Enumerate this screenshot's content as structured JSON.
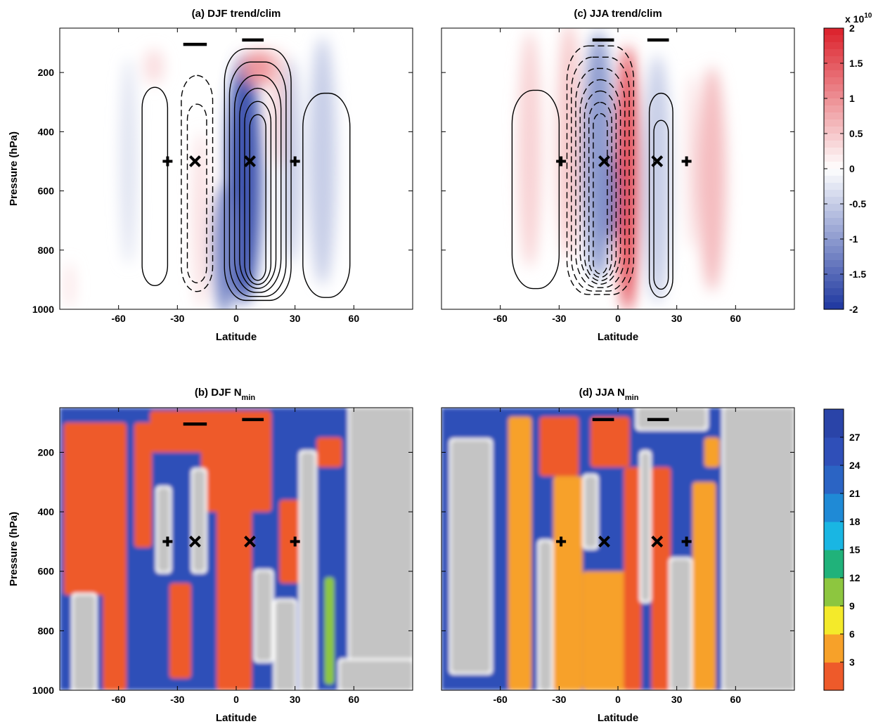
{
  "chart_data": [
    {
      "type": "heatmap",
      "panel": "a",
      "title": "(a) DJF trend/clim",
      "xlabel": "Latitude",
      "ylabel": "Pressure (hPa)",
      "xlim": [
        -90,
        90
      ],
      "ylim": [
        1000,
        50
      ],
      "xticks": [
        -60,
        -30,
        0,
        30,
        60
      ],
      "yticks": [
        200,
        400,
        600,
        800,
        1000
      ],
      "fill_blobs": [
        {
          "lat": 4,
          "p": 560,
          "wlat": 9,
          "wp": 420,
          "v": -1.7
        },
        {
          "lat": -6,
          "p": 800,
          "wlat": 6,
          "wp": 220,
          "v": -1.2
        },
        {
          "lat": 12,
          "p": 185,
          "wlat": 9,
          "wp": 60,
          "v": 0.9
        },
        {
          "lat": 22,
          "p": 320,
          "wlat": 4,
          "wp": 200,
          "v": 0.4
        },
        {
          "lat": 28,
          "p": 500,
          "wlat": 4,
          "wp": 350,
          "v": -0.6
        },
        {
          "lat": 44,
          "p": 500,
          "wlat": 7,
          "wp": 420,
          "v": -0.5
        },
        {
          "lat": -18,
          "p": 700,
          "wlat": 4,
          "wp": 300,
          "v": 0.3
        },
        {
          "lat": -42,
          "p": 180,
          "wlat": 5,
          "wp": 60,
          "v": 0.3
        },
        {
          "lat": -55,
          "p": 500,
          "wlat": 4,
          "wp": 350,
          "v": -0.3
        },
        {
          "lat": -85,
          "p": 920,
          "wlat": 2,
          "wp": 80,
          "v": 0.3
        }
      ],
      "contour_cells": [
        {
          "lat_min": -48,
          "lat_max": -35,
          "p_top": 250,
          "p_bot": 920,
          "style": "solid",
          "n": 1
        },
        {
          "lat_min": -28,
          "lat_max": -12,
          "p_top": 210,
          "p_bot": 940,
          "style": "dashed",
          "n": 2
        },
        {
          "lat_min": -6,
          "lat_max": 28,
          "p_top": 120,
          "p_bot": 970,
          "style": "solid",
          "n": 6
        },
        {
          "lat_min": 34,
          "lat_max": 58,
          "p_top": 270,
          "p_bot": 960,
          "style": "solid",
          "n": 1
        }
      ],
      "markers": [
        {
          "symbol": "+",
          "lat": -35,
          "p": 500
        },
        {
          "symbol": "x",
          "lat": -21,
          "p": 500
        },
        {
          "symbol": "x",
          "lat": 7,
          "p": 500
        },
        {
          "symbol": "+",
          "lat": 30,
          "p": 500
        }
      ],
      "bars": [
        {
          "lat_min": -27,
          "lat_max": -15,
          "p": 105
        },
        {
          "lat_min": 3,
          "lat_max": 14,
          "p": 90
        }
      ]
    },
    {
      "type": "heatmap",
      "panel": "c",
      "title": "(c) JJA trend/clim",
      "xlabel": "Latitude",
      "xlim": [
        -90,
        90
      ],
      "ylim": [
        1000,
        50
      ],
      "xticks": [
        -60,
        -30,
        0,
        30,
        60
      ],
      "fill_blobs": [
        {
          "lat": 5,
          "p": 560,
          "wlat": 6,
          "wp": 450,
          "v": 1.6
        },
        {
          "lat": -10,
          "p": 480,
          "wlat": 8,
          "wp": 420,
          "v": -1.0
        },
        {
          "lat": -4,
          "p": 620,
          "wlat": 4,
          "wp": 150,
          "v": -1.2
        },
        {
          "lat": -45,
          "p": 460,
          "wlat": 6,
          "wp": 400,
          "v": 0.4
        },
        {
          "lat": -25,
          "p": 430,
          "wlat": 6,
          "wp": 400,
          "v": 0.5
        },
        {
          "lat": 20,
          "p": 560,
          "wlat": 7,
          "wp": 420,
          "v": -0.5
        },
        {
          "lat": 48,
          "p": 560,
          "wlat": 7,
          "wp": 380,
          "v": 0.6
        },
        {
          "lat": 38,
          "p": 500,
          "wlat": 3,
          "wp": 300,
          "v": 0.3
        }
      ],
      "contour_cells": [
        {
          "lat_min": -54,
          "lat_max": -30,
          "p_top": 260,
          "p_bot": 930,
          "style": "solid",
          "n": 1
        },
        {
          "lat_min": -26,
          "lat_max": 8,
          "p_top": 110,
          "p_bot": 950,
          "style": "dashed",
          "n": 7
        },
        {
          "lat_min": 16,
          "lat_max": 28,
          "p_top": 270,
          "p_bot": 960,
          "style": "solid",
          "n": 2
        }
      ],
      "markers": [
        {
          "symbol": "+",
          "lat": -29,
          "p": 500
        },
        {
          "symbol": "x",
          "lat": -7,
          "p": 500
        },
        {
          "symbol": "x",
          "lat": 20,
          "p": 500
        },
        {
          "symbol": "+",
          "lat": 35,
          "p": 500
        }
      ],
      "bars": [
        {
          "lat_min": -13,
          "lat_max": -2,
          "p": 90
        },
        {
          "lat_min": 15,
          "lat_max": 26,
          "p": 90
        }
      ],
      "colorbar": {
        "range": [
          -2,
          2
        ],
        "multiplier": "x 10",
        "exponent": "10",
        "ticks": [
          "2",
          "1.5",
          "1",
          "0.5",
          "0",
          "-0.5",
          "-1",
          "-1.5",
          "-2"
        ],
        "tick_values": [
          2,
          1.5,
          1,
          0.5,
          0,
          -0.5,
          -1,
          -1.5,
          -2
        ]
      }
    },
    {
      "type": "heatmap",
      "panel": "b",
      "title": "(b) DJF N",
      "title_subscript": "min",
      "xlabel": "Latitude",
      "ylabel": "Pressure (hPa)",
      "xlim": [
        -90,
        90
      ],
      "ylim": [
        1000,
        50
      ],
      "xticks": [
        -60,
        -30,
        0,
        30,
        60
      ],
      "yticks": [
        200,
        400,
        600,
        800,
        1000
      ],
      "background": 26,
      "regions": [
        {
          "lat_min": -88,
          "lat_max": -64,
          "p_top": 100,
          "p_bot": 680,
          "v": 2
        },
        {
          "lat_min": -68,
          "lat_max": -56,
          "p_top": 100,
          "p_bot": 1000,
          "v": 2
        },
        {
          "lat_min": -52,
          "lat_max": -43,
          "p_top": 100,
          "p_bot": 520,
          "v": 2
        },
        {
          "lat_min": -44,
          "lat_max": -8,
          "p_top": 60,
          "p_bot": 200,
          "v": 2
        },
        {
          "lat_min": -18,
          "lat_max": 18,
          "p_top": 60,
          "p_bot": 400,
          "v": 2
        },
        {
          "lat_min": -10,
          "lat_max": 8,
          "p_top": 380,
          "p_bot": 1000,
          "v": 2
        },
        {
          "lat_min": -34,
          "lat_max": -23,
          "p_top": 640,
          "p_bot": 960,
          "v": 2
        },
        {
          "lat_min": 22,
          "lat_max": 34,
          "p_top": 360,
          "p_bot": 640,
          "v": 2
        },
        {
          "lat_min": 41,
          "lat_max": 54,
          "p_top": 150,
          "p_bot": 250,
          "v": 2
        },
        {
          "lat_min": 45,
          "lat_max": 50,
          "p_top": 620,
          "p_bot": 980,
          "v": 10
        },
        {
          "lat_min": 58,
          "lat_max": 90,
          "p_top": 50,
          "p_bot": 900,
          "v": "gray"
        },
        {
          "lat_min": 53,
          "lat_max": 90,
          "p_top": 900,
          "p_bot": 1000,
          "v": "gray"
        },
        {
          "lat_min": -83,
          "lat_max": -72,
          "p_top": 680,
          "p_bot": 1000,
          "v": "gray"
        },
        {
          "lat_min": -40,
          "lat_max": -34,
          "p_top": 320,
          "p_bot": 600,
          "v": "gray"
        },
        {
          "lat_min": -22,
          "lat_max": -16,
          "p_top": 260,
          "p_bot": 600,
          "v": "gray"
        },
        {
          "lat_min": 10,
          "lat_max": 18,
          "p_top": 600,
          "p_bot": 900,
          "v": "gray"
        },
        {
          "lat_min": 20,
          "lat_max": 30,
          "p_top": 700,
          "p_bot": 1000,
          "v": "gray"
        },
        {
          "lat_min": 33,
          "lat_max": 40,
          "p_top": 200,
          "p_bot": 1000,
          "v": "gray"
        }
      ],
      "markers": [
        {
          "symbol": "+",
          "lat": -35,
          "p": 500
        },
        {
          "symbol": "x",
          "lat": -21,
          "p": 500
        },
        {
          "symbol": "x",
          "lat": 7,
          "p": 500
        },
        {
          "symbol": "+",
          "lat": 30,
          "p": 500
        }
      ],
      "bars": [
        {
          "lat_min": -27,
          "lat_max": -15,
          "p": 105
        },
        {
          "lat_min": 3,
          "lat_max": 14,
          "p": 90
        }
      ]
    },
    {
      "type": "heatmap",
      "panel": "d",
      "title": "(d) JJA N",
      "title_subscript": "min",
      "xlabel": "Latitude",
      "xlim": [
        -90,
        90
      ],
      "ylim": [
        1000,
        50
      ],
      "xticks": [
        -60,
        -30,
        0,
        30,
        60
      ],
      "background": 26,
      "regions": [
        {
          "lat_min": -56,
          "lat_max": -44,
          "p_top": 80,
          "p_bot": 1000,
          "v": 5
        },
        {
          "lat_min": -40,
          "lat_max": -20,
          "p_top": 80,
          "p_bot": 280,
          "v": 2
        },
        {
          "lat_min": -33,
          "lat_max": -18,
          "p_top": 280,
          "p_bot": 1000,
          "v": 4
        },
        {
          "lat_min": -14,
          "lat_max": 6,
          "p_top": 80,
          "p_bot": 250,
          "v": 2
        },
        {
          "lat_min": -18,
          "lat_max": 10,
          "p_top": 600,
          "p_bot": 1000,
          "v": 4
        },
        {
          "lat_min": 3,
          "lat_max": 12,
          "p_top": 250,
          "p_bot": 1000,
          "v": 2
        },
        {
          "lat_min": 17,
          "lat_max": 27,
          "p_top": 250,
          "p_bot": 1000,
          "v": 2
        },
        {
          "lat_min": 38,
          "lat_max": 50,
          "p_top": 300,
          "p_bot": 1000,
          "v": 4
        },
        {
          "lat_min": 44,
          "lat_max": 52,
          "p_top": 150,
          "p_bot": 250,
          "v": 5
        },
        {
          "lat_min": -85,
          "lat_max": -65,
          "p_top": 160,
          "p_bot": 940,
          "v": "gray"
        },
        {
          "lat_min": -40,
          "lat_max": -34,
          "p_top": 500,
          "p_bot": 1000,
          "v": "gray"
        },
        {
          "lat_min": -17,
          "lat_max": -11,
          "p_top": 280,
          "p_bot": 520,
          "v": "gray"
        },
        {
          "lat_min": 12,
          "lat_max": 16,
          "p_top": 200,
          "p_bot": 700,
          "v": "gray"
        },
        {
          "lat_min": 27,
          "lat_max": 37,
          "p_top": 560,
          "p_bot": 1000,
          "v": "gray"
        },
        {
          "lat_min": 54,
          "lat_max": 90,
          "p_top": 50,
          "p_bot": 1000,
          "v": "gray"
        },
        {
          "lat_min": 10,
          "lat_max": 45,
          "p_top": 50,
          "p_bot": 120,
          "v": "gray"
        }
      ],
      "markers": [
        {
          "symbol": "+",
          "lat": -29,
          "p": 500
        },
        {
          "symbol": "x",
          "lat": -7,
          "p": 500
        },
        {
          "symbol": "x",
          "lat": 20,
          "p": 500
        },
        {
          "symbol": "+",
          "lat": 35,
          "p": 500
        }
      ],
      "bars": [
        {
          "lat_min": -13,
          "lat_max": -2,
          "p": 90
        },
        {
          "lat_min": 15,
          "lat_max": 26,
          "p": 90
        }
      ],
      "colorbar": {
        "range": [
          0,
          30
        ],
        "ticks": [
          "27",
          "24",
          "21",
          "18",
          "15",
          "12",
          "9",
          "6",
          "3"
        ],
        "tick_values": [
          27,
          24,
          21,
          18,
          15,
          12,
          9,
          6,
          3
        ]
      }
    }
  ]
}
